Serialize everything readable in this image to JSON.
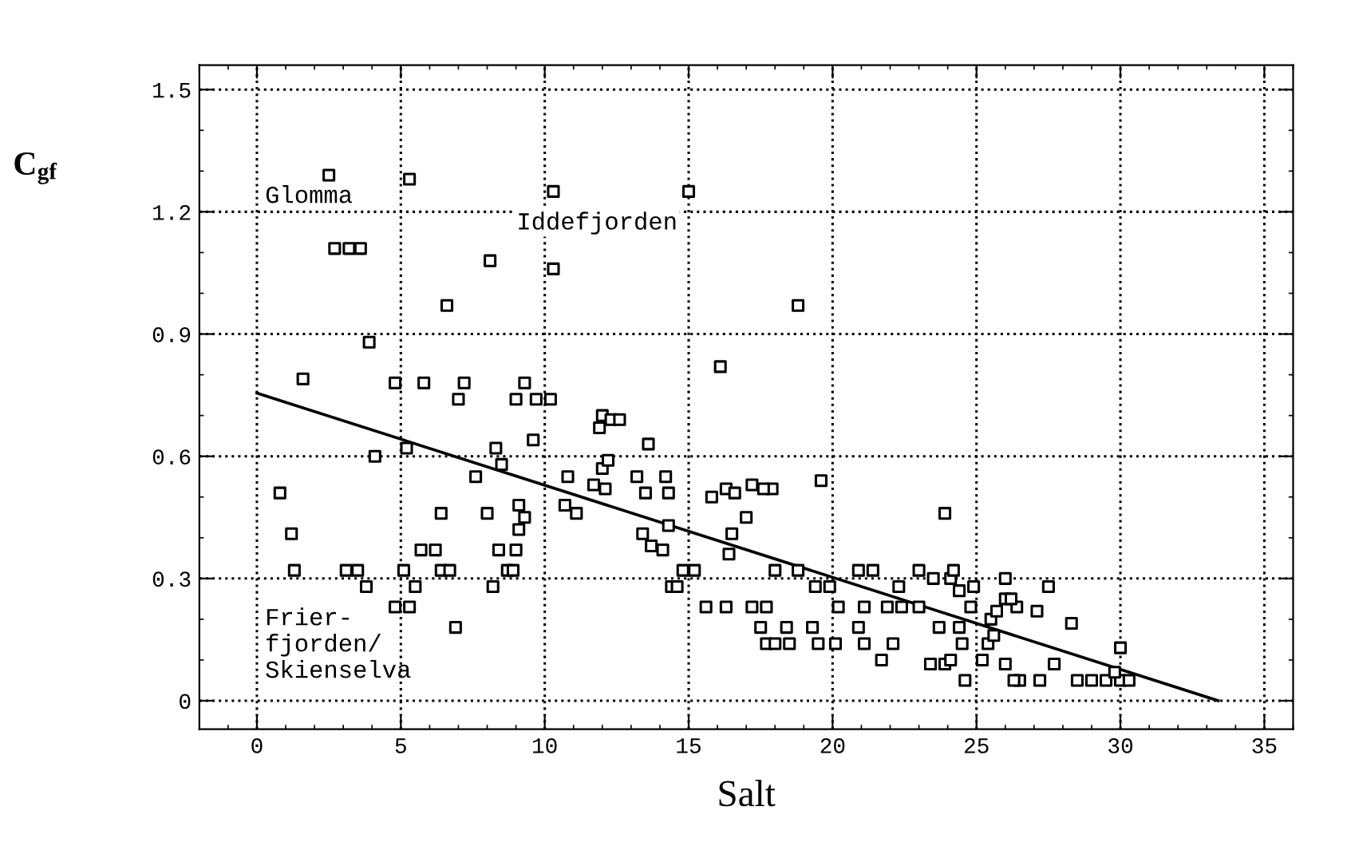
{
  "chart_data": {
    "type": "scatter",
    "xlabel": "Salt",
    "ylabel": "C$_{gf}$",
    "xlim": [
      -2,
      36
    ],
    "ylim": [
      -0.07,
      1.56
    ],
    "xticks": [
      0,
      5,
      10,
      15,
      20,
      25,
      30,
      35
    ],
    "yticks": [
      {
        "value": 0,
        "label": "0"
      },
      0.3,
      0.6,
      0.9,
      1.2,
      1.5
    ],
    "grid": true,
    "marker": "square",
    "legend": false,
    "series": [
      {
        "color": "#000000",
        "x": [
          2.5,
          5.3,
          10.3,
          15,
          2.7,
          3.2,
          3.6,
          8.1,
          10.3,
          6.6,
          18.8,
          3.9,
          16.1,
          1.6,
          4.8,
          5.8,
          7.2,
          9.3,
          7.0,
          9,
          9.7,
          10.2,
          12.0,
          12.3,
          12.6,
          11.9,
          13.6,
          8.3,
          5.2,
          9.6,
          4.1,
          8.5,
          12.0,
          12.2,
          0.8,
          7.6,
          10.8,
          11.7,
          13.2,
          14.2,
          19.6,
          1.2,
          6.4,
          8.0,
          9.1,
          10.7,
          12.1,
          13.5,
          14.3,
          15.8,
          16.3,
          17.2,
          17.9,
          17.6,
          1.3,
          3.1,
          3.5,
          5.7,
          6.2,
          5.1,
          6.4,
          6.7,
          8.4,
          9.0,
          8.7,
          8.9,
          8.2,
          5.5,
          4.8,
          5.3,
          3.8,
          6.9,
          9.1,
          9.3,
          11.1,
          13.4,
          14.1,
          13.7,
          14.3,
          14.8,
          15.2,
          15.6,
          16.5,
          17.0,
          16.4,
          14.4,
          14.6,
          16.3,
          17.2,
          17.7,
          16.6,
          18.0,
          18.8,
          19.4,
          19.9,
          17.5,
          18.4,
          19.3,
          20.2,
          21.1,
          21.9,
          22.4,
          23.0,
          17.7,
          18.5,
          18.0,
          19.5,
          20.1,
          20.9,
          21.1,
          22.1,
          21.7,
          21.4,
          20.9,
          22.3,
          23.5,
          23.0,
          24.9,
          24.1,
          26.0,
          23.9,
          24.2,
          24.4,
          24.8,
          24.5,
          24.6,
          23.9,
          23.7,
          24.4,
          25.2,
          25.4,
          25.6,
          25.5,
          25.7,
          26.4,
          26.0,
          26.2,
          27.1,
          27.5,
          28.3,
          26.0,
          26.5,
          27.2,
          27.7,
          28.5,
          29.0,
          29.5,
          30.0,
          30.3,
          30.0,
          29.8,
          26.3,
          24.1,
          23.4
        ],
        "values": [
          1.29,
          1.28,
          1.25,
          1.25,
          1.11,
          1.11,
          1.11,
          1.08,
          1.06,
          0.97,
          0.97,
          0.88,
          0.82,
          0.79,
          0.78,
          0.78,
          0.78,
          0.78,
          0.74,
          0.74,
          0.74,
          0.74,
          0.7,
          0.69,
          0.69,
          0.67,
          0.63,
          0.62,
          0.62,
          0.64,
          0.6,
          0.58,
          0.57,
          0.59,
          0.51,
          0.55,
          0.55,
          0.53,
          0.55,
          0.55,
          0.54,
          0.41,
          0.46,
          0.46,
          0.48,
          0.48,
          0.52,
          0.51,
          0.51,
          0.5,
          0.52,
          0.53,
          0.52,
          0.52,
          0.32,
          0.32,
          0.32,
          0.37,
          0.37,
          0.32,
          0.32,
          0.32,
          0.37,
          0.37,
          0.32,
          0.32,
          0.28,
          0.28,
          0.23,
          0.23,
          0.28,
          0.18,
          0.42,
          0.45,
          0.46,
          0.41,
          0.37,
          0.38,
          0.43,
          0.32,
          0.32,
          0.23,
          0.41,
          0.45,
          0.36,
          0.28,
          0.28,
          0.23,
          0.23,
          0.23,
          0.51,
          0.32,
          0.32,
          0.28,
          0.28,
          0.18,
          0.18,
          0.18,
          0.23,
          0.23,
          0.23,
          0.23,
          0.23,
          0.14,
          0.14,
          0.14,
          0.14,
          0.14,
          0.18,
          0.14,
          0.14,
          0.1,
          0.32,
          0.32,
          0.28,
          0.3,
          0.32,
          0.28,
          0.3,
          0.3,
          0.46,
          0.32,
          0.27,
          0.23,
          0.14,
          0.05,
          0.09,
          0.18,
          0.18,
          0.1,
          0.14,
          0.16,
          0.2,
          0.22,
          0.23,
          0.25,
          0.25,
          0.22,
          0.28,
          0.19,
          0.09,
          0.05,
          0.05,
          0.09,
          0.05,
          0.05,
          0.05,
          0.05,
          0.05,
          0.13,
          0.07,
          0.05,
          0.1,
          0.09
        ]
      },
      {
        "type": "line",
        "color": "#000000",
        "marker": "none",
        "x": [
          0,
          33.4
        ],
        "values": [
          0.755,
          0
        ]
      }
    ],
    "annotations": [
      "Glomma",
      "Iddefjorden",
      "Frier-\nfjorden/\nSkienselva"
    ]
  }
}
